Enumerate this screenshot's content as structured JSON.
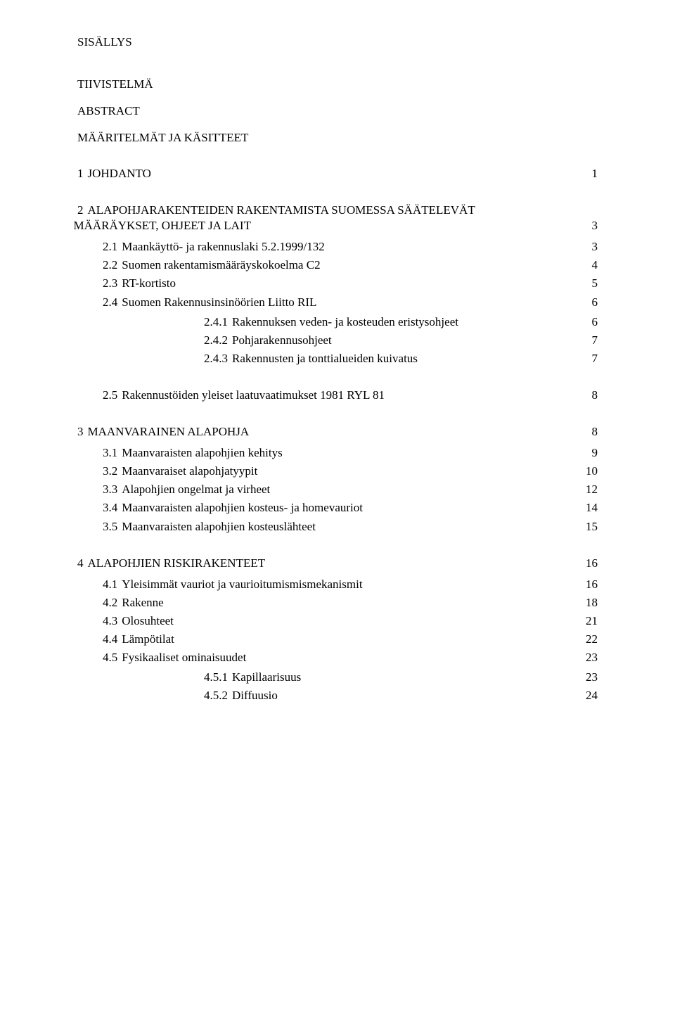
{
  "title": "SISÄLLYS",
  "headings": {
    "tiivistelma": "TIIVISTELMÄ",
    "abstract": "ABSTRACT",
    "maaritelmat": "MÄÄRITELMÄT JA KÄSITTEET"
  },
  "toc": {
    "s1": {
      "num": "1",
      "label": "JOHDANTO",
      "page": "1"
    },
    "s2": {
      "num": "2",
      "label_line1": "ALAPOHJARAKENTEIDEN RAKENTAMISTA SUOMESSA SÄÄTELEVÄT",
      "label_line2": "MÄÄRÄYKSET, OHJEET JA LAIT",
      "page": "3",
      "sub": {
        "s21": {
          "num": "2.1",
          "label": "Maankäyttö- ja rakennuslaki 5.2.1999/132",
          "page": "3"
        },
        "s22": {
          "num": "2.2",
          "label": "Suomen rakentamismääräyskokoelma C2",
          "page": "4"
        },
        "s23": {
          "num": "2.3",
          "label": "RT-kortisto",
          "page": "5"
        },
        "s24": {
          "num": "2.4",
          "label": "Suomen Rakennusinsinöörien Liitto RIL",
          "page": "6",
          "sub": {
            "s241": {
              "num": "2.4.1",
              "label": "Rakennuksen veden- ja kosteuden eristysohjeet",
              "page": "6"
            },
            "s242": {
              "num": "2.4.2",
              "label": "Pohjarakennusohjeet",
              "page": "7"
            },
            "s243": {
              "num": "2.4.3",
              "label": "Rakennusten ja tonttialueiden kuivatus",
              "page": "7"
            }
          }
        },
        "s25": {
          "num": "2.5",
          "label": "Rakennustöiden yleiset laatuvaatimukset 1981 RYL 81",
          "page": "8"
        }
      }
    },
    "s3": {
      "num": "3",
      "label": "MAANVARAINEN ALAPOHJA",
      "page": "8",
      "sub": {
        "s31": {
          "num": "3.1",
          "label": "Maanvaraisten alapohjien kehitys",
          "page": "9"
        },
        "s32": {
          "num": "3.2",
          "label": "Maanvaraiset alapohjatyypit",
          "page": "10"
        },
        "s33": {
          "num": "3.3",
          "label": "Alapohjien ongelmat ja virheet",
          "page": "12"
        },
        "s34": {
          "num": "3.4",
          "label": "Maanvaraisten alapohjien kosteus- ja homevauriot",
          "page": "14"
        },
        "s35": {
          "num": "3.5",
          "label": "Maanvaraisten alapohjien kosteuslähteet",
          "page": "15"
        }
      }
    },
    "s4": {
      "num": "4",
      "label": "ALAPOHJIEN RISKIRAKENTEET",
      "page": "16",
      "sub": {
        "s41": {
          "num": "4.1",
          "label": "Yleisimmät vauriot ja vaurioitumismismekanismit",
          "page": "16"
        },
        "s42": {
          "num": "4.2",
          "label": "Rakenne",
          "page": "18"
        },
        "s43": {
          "num": "4.3",
          "label": "Olosuhteet",
          "page": "21"
        },
        "s44": {
          "num": "4.4",
          "label": "Lämpötilat",
          "page": "22"
        },
        "s45": {
          "num": "4.5",
          "label": "Fysikaaliset ominaisuudet",
          "page": "23",
          "sub": {
            "s451": {
              "num": "4.5.1",
              "label": "Kapillaarisuus",
              "page": "23"
            },
            "s452": {
              "num": "4.5.2",
              "label": "Diffuusio",
              "page": "24"
            }
          }
        }
      }
    }
  }
}
